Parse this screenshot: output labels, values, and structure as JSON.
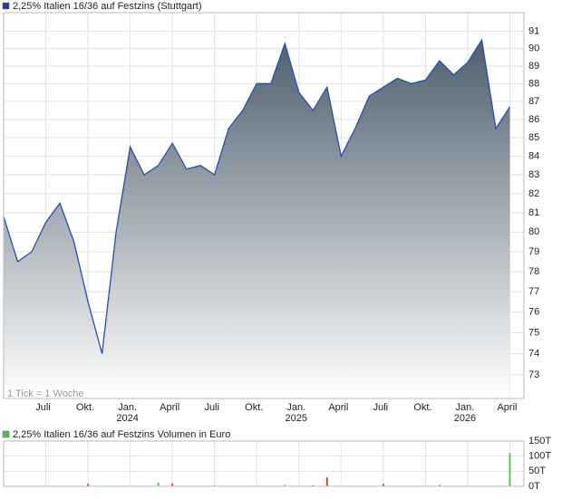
{
  "chart_data": [
    {
      "type": "area",
      "title": "2,25% Italien 16/36 auf Festzins (Stuttgart)",
      "note": "1 Tick = 1 Woche",
      "color": "#2450b0",
      "legend_color": "#1f3f95",
      "log_scale": true,
      "grid": true,
      "x": [
        "2023-04",
        "2023-05",
        "2023-06",
        "2023-07",
        "2023-08",
        "2023-09",
        "2023-10",
        "2023-11",
        "2023-12",
        "2024-01",
        "2024-02",
        "2024-03",
        "2024-04",
        "2024-05",
        "2024-06",
        "2024-07",
        "2024-08",
        "2024-09",
        "2024-10",
        "2024-11",
        "2024-12",
        "2025-01",
        "2025-02",
        "2025-03",
        "2025-04",
        "2025-05",
        "2025-06",
        "2025-07",
        "2025-08",
        "2025-09",
        "2025-10",
        "2025-11",
        "2025-12",
        "2026-01",
        "2026-02",
        "2026-03",
        "2026-04"
      ],
      "values": [
        80.8,
        78.5,
        79.0,
        80.5,
        81.5,
        79.5,
        76.5,
        74.0,
        80.0,
        84.5,
        83.0,
        83.5,
        84.7,
        83.3,
        83.5,
        83.0,
        85.5,
        86.5,
        88.0,
        88.0,
        90.3,
        87.5,
        86.5,
        87.8,
        84.0,
        85.5,
        87.3,
        87.8,
        88.3,
        88.0,
        88.2,
        89.3,
        88.5,
        89.2,
        90.5,
        85.5,
        86.7
      ],
      "xlim": [
        "2023-04",
        "2026-05"
      ],
      "xticks": [
        {
          "value": "2023-07",
          "label": "Juli"
        },
        {
          "value": "2023-10",
          "label": "Okt."
        },
        {
          "value": "2024-01",
          "label": "Jan."
        },
        {
          "value": "2024-04",
          "label": "April"
        },
        {
          "value": "2024-07",
          "label": "Juli"
        },
        {
          "value": "2024-10",
          "label": "Okt."
        },
        {
          "value": "2025-01",
          "label": "Jan."
        },
        {
          "value": "2025-04",
          "label": "April"
        },
        {
          "value": "2025-07",
          "label": "Juli"
        },
        {
          "value": "2025-10",
          "label": "Okt."
        },
        {
          "value": "2026-01",
          "label": "Jan."
        },
        {
          "value": "2026-04",
          "label": "April"
        }
      ],
      "year_ticks": [
        {
          "value": "2024-01",
          "label": "2024"
        },
        {
          "value": "2025-01",
          "label": "2025"
        },
        {
          "value": "2026-01",
          "label": "2026"
        }
      ],
      "ylim": [
        71.9,
        92.1
      ],
      "yticks": [
        73,
        74,
        75,
        76,
        77,
        78,
        79,
        80,
        81,
        82,
        83,
        84,
        85,
        86,
        87,
        88,
        89,
        90,
        91
      ]
    },
    {
      "type": "bar",
      "title": "2,25% Italien 16/36 auf Festzins Volumen in Euro",
      "legend_color": "#5cb85c",
      "grid": true,
      "x": [
        "2023-04",
        "2023-05",
        "2023-06",
        "2023-07",
        "2023-08",
        "2023-09",
        "2023-10",
        "2023-11",
        "2023-12",
        "2024-01",
        "2024-02",
        "2024-03",
        "2024-04",
        "2024-05",
        "2024-06",
        "2024-07",
        "2024-08",
        "2024-09",
        "2024-10",
        "2024-11",
        "2024-12",
        "2025-01",
        "2025-02",
        "2025-03",
        "2025-04",
        "2025-05",
        "2025-06",
        "2025-07",
        "2025-08",
        "2025-09",
        "2025-10",
        "2025-11",
        "2025-12",
        "2026-01",
        "2026-02",
        "2026-03",
        "2026-04"
      ],
      "values": [
        0,
        0,
        0,
        0,
        0,
        0,
        8,
        0,
        0,
        0,
        0,
        12,
        10,
        0,
        0,
        3,
        0,
        0,
        0,
        0,
        5,
        0,
        3,
        30,
        0,
        0,
        0,
        8,
        0,
        0,
        0,
        5,
        0,
        0,
        0,
        0,
        110
      ],
      "colors": [
        "#5c5",
        "#5c5",
        "#5c5",
        "#5c5",
        "#5c5",
        "#5c5",
        "#d44",
        "#5c5",
        "#5c5",
        "#5c5",
        "#5c5",
        "#5c5",
        "#d44",
        "#5c5",
        "#5c5",
        "#5c5",
        "#5c5",
        "#5c5",
        "#5c5",
        "#5c5",
        "#5c5",
        "#5c5",
        "#d44",
        "#d44",
        "#5c5",
        "#5c5",
        "#5c5",
        "#d44",
        "#5c5",
        "#5c5",
        "#5c5",
        "#5c5",
        "#5c5",
        "#5c5",
        "#5c5",
        "#5c5",
        "#5c5"
      ],
      "xlim": [
        "2023-04",
        "2026-05"
      ],
      "xticks": [
        "2023-07",
        "2023-10",
        "2024-01",
        "2024-04",
        "2024-07",
        "2024-10",
        "2025-01",
        "2025-04",
        "2025-07",
        "2025-10",
        "2026-01",
        "2026-04"
      ],
      "ylim": [
        0,
        150
      ],
      "yticks": [
        {
          "value": 0,
          "label": "0T"
        },
        {
          "value": 50,
          "label": "50T"
        },
        {
          "value": 100,
          "label": "100T"
        },
        {
          "value": 150,
          "label": "150T"
        }
      ]
    }
  ]
}
